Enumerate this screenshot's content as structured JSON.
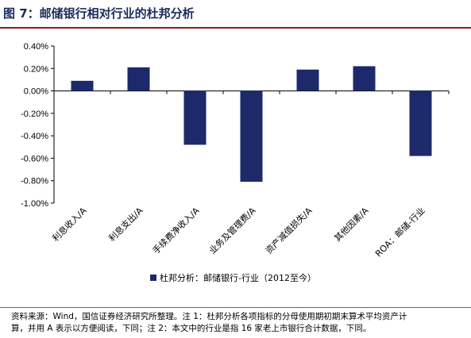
{
  "header": {
    "title": "图 7：邮储银行相对行业的杜邦分析"
  },
  "chart_data": {
    "type": "bar",
    "title": "图 7：邮储银行相对行业的杜邦分析",
    "categories": [
      "利息收入/A",
      "利息支出/A",
      "手续费净收入/A",
      "业务及管理费/A",
      "资产减值损失/A",
      "其他因素/A",
      "ROA：邮储-行业"
    ],
    "series": [
      {
        "name": "杜邦分析：邮储银行-行业（2012至今）",
        "values": [
          0.09,
          0.21,
          -0.48,
          -0.81,
          0.19,
          0.22,
          -0.58
        ],
        "color": "#1c2a6b"
      }
    ],
    "ylim": [
      -1.0,
      0.4
    ],
    "yticks": [
      "0.40%",
      "0.20%",
      "0.00%",
      "-0.20%",
      "-0.40%",
      "-0.60%",
      "-0.80%",
      "-1.00%"
    ],
    "legend_position": "bottom-center",
    "grid": false
  },
  "footnote": {
    "line1": "资料来源：Wind，国信证券经济研究所整理。注 1：杜邦分析各项指标的分母使用期初期末算术平均资产计",
    "line2": "算，并用 A 表示以方便阅读，下同；注 2：本文中的行业是指 16 家老上市银行合计数据，下同。"
  }
}
